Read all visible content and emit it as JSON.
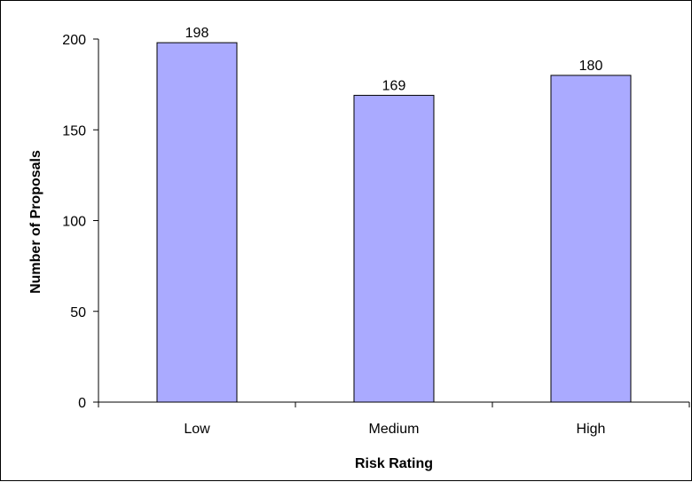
{
  "chart_data": {
    "type": "bar",
    "categories": [
      "Low",
      "Medium",
      "High"
    ],
    "values": [
      198,
      169,
      180
    ],
    "data_labels": [
      "198",
      "169",
      "180"
    ],
    "title": "",
    "xlabel": "Risk Rating",
    "ylabel": "Number of Proposals",
    "ylim": [
      0,
      200
    ],
    "yticks": [
      0,
      50,
      100,
      150,
      200
    ],
    "grid": false,
    "legend": "none",
    "bar_color": "#aaaaff",
    "bar_edge_color": "#000000",
    "axis_color": "#000000"
  }
}
